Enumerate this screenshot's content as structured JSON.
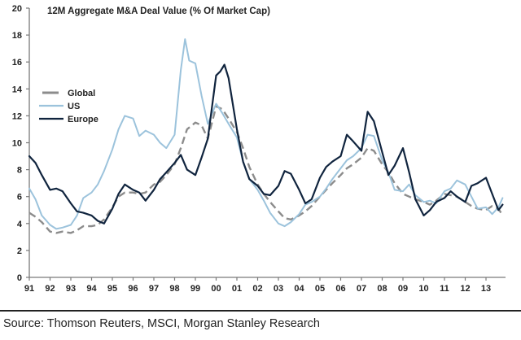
{
  "chart_data": {
    "type": "line",
    "title": "12M Aggregate M&A Deal Value (% Of Market Cap)",
    "xlabel": "",
    "ylabel": "",
    "xlim": [
      1991,
      2013.9
    ],
    "ylim": [
      0,
      20
    ],
    "y_ticks": [
      0,
      2,
      4,
      6,
      8,
      10,
      12,
      14,
      16,
      18,
      20
    ],
    "x_ticks": [
      {
        "year": 1991,
        "label": "91"
      },
      {
        "year": 1992,
        "label": "92"
      },
      {
        "year": 1993,
        "label": "93"
      },
      {
        "year": 1994,
        "label": "94"
      },
      {
        "year": 1995,
        "label": "95"
      },
      {
        "year": 1996,
        "label": "96"
      },
      {
        "year": 1997,
        "label": "97"
      },
      {
        "year": 1998,
        "label": "98"
      },
      {
        "year": 1999,
        "label": "99"
      },
      {
        "year": 2000,
        "label": "00"
      },
      {
        "year": 2001,
        "label": "01"
      },
      {
        "year": 2002,
        "label": "02"
      },
      {
        "year": 2003,
        "label": "03"
      },
      {
        "year": 2004,
        "label": "04"
      },
      {
        "year": 2005,
        "label": "05"
      },
      {
        "year": 2006,
        "label": "06"
      },
      {
        "year": 2007,
        "label": "07"
      },
      {
        "year": 2008,
        "label": "08"
      },
      {
        "year": 2009,
        "label": "09"
      },
      {
        "year": 2010,
        "label": "10"
      },
      {
        "year": 2011,
        "label": "11"
      },
      {
        "year": 2012,
        "label": "12"
      },
      {
        "year": 2013,
        "label": "13"
      }
    ],
    "grid": false,
    "legend_position": "top-left",
    "series": [
      {
        "name": "Global",
        "color": "#8c8c8c",
        "style": "dashed",
        "x": [
          1991.0,
          1991.3,
          1991.6,
          1992.0,
          1992.3,
          1992.6,
          1993.0,
          1993.3,
          1993.6,
          1994.0,
          1994.3,
          1994.6,
          1995.0,
          1995.3,
          1995.6,
          1996.0,
          1996.3,
          1996.6,
          1997.0,
          1997.3,
          1997.6,
          1998.0,
          1998.3,
          1998.6,
          1999.0,
          1999.3,
          1999.6,
          2000.0,
          2000.3,
          2000.6,
          2001.0,
          2001.3,
          2001.6,
          2002.0,
          2002.3,
          2002.6,
          2003.0,
          2003.3,
          2003.6,
          2004.0,
          2004.3,
          2004.6,
          2005.0,
          2005.3,
          2005.6,
          2006.0,
          2006.3,
          2006.6,
          2007.0,
          2007.3,
          2007.6,
          2008.0,
          2008.3,
          2008.6,
          2009.0,
          2009.3,
          2009.6,
          2010.0,
          2010.3,
          2010.6,
          2011.0,
          2011.3,
          2011.6,
          2012.0,
          2012.3,
          2012.6,
          2013.0,
          2013.3,
          2013.6,
          2013.8
        ],
        "values": [
          4.8,
          4.5,
          4.1,
          3.4,
          3.3,
          3.4,
          3.3,
          3.5,
          3.8,
          3.8,
          3.9,
          4.3,
          5.2,
          6.0,
          6.3,
          6.3,
          6.2,
          6.3,
          6.9,
          7.1,
          7.6,
          8.4,
          9.6,
          11.0,
          11.5,
          11.3,
          10.3,
          12.7,
          12.5,
          11.8,
          10.8,
          9.6,
          8.2,
          6.9,
          6.2,
          5.6,
          4.9,
          4.4,
          4.3,
          4.6,
          4.9,
          5.3,
          6.0,
          6.5,
          7.0,
          7.6,
          8.1,
          8.4,
          8.9,
          9.6,
          9.4,
          8.4,
          7.8,
          7.0,
          6.2,
          6.0,
          5.8,
          5.6,
          5.4,
          5.7,
          6.2,
          6.1,
          6.0,
          5.6,
          5.3,
          5.1,
          5.0,
          5.3,
          5.1,
          4.6
        ]
      },
      {
        "name": "US",
        "color": "#9cc3dc",
        "style": "solid",
        "x": [
          1991.0,
          1991.3,
          1991.6,
          1992.0,
          1992.3,
          1992.6,
          1993.0,
          1993.3,
          1993.6,
          1994.0,
          1994.3,
          1994.6,
          1995.0,
          1995.3,
          1995.6,
          1996.0,
          1996.3,
          1996.6,
          1997.0,
          1997.3,
          1997.6,
          1998.0,
          1998.3,
          1998.5,
          1998.7,
          1999.0,
          1999.3,
          1999.6,
          2000.0,
          2000.3,
          2000.6,
          2001.0,
          2001.3,
          2001.6,
          2002.0,
          2002.3,
          2002.6,
          2003.0,
          2003.3,
          2003.6,
          2004.0,
          2004.3,
          2004.6,
          2005.0,
          2005.3,
          2005.6,
          2006.0,
          2006.3,
          2006.6,
          2007.0,
          2007.3,
          2007.6,
          2008.0,
          2008.3,
          2008.6,
          2009.0,
          2009.3,
          2009.6,
          2010.0,
          2010.3,
          2010.6,
          2011.0,
          2011.3,
          2011.6,
          2012.0,
          2012.3,
          2012.6,
          2013.0,
          2013.3,
          2013.6,
          2013.8
        ],
        "values": [
          6.6,
          5.8,
          4.6,
          3.9,
          3.6,
          3.7,
          3.9,
          4.6,
          5.9,
          6.3,
          6.9,
          7.9,
          9.5,
          11.0,
          12.0,
          11.8,
          10.5,
          10.9,
          10.6,
          10.0,
          9.6,
          10.6,
          15.4,
          17.7,
          16.1,
          15.9,
          13.5,
          11.4,
          12.9,
          12.2,
          11.4,
          10.4,
          8.6,
          7.3,
          6.5,
          5.7,
          4.8,
          4.0,
          3.8,
          4.1,
          4.7,
          5.4,
          5.6,
          6.0,
          6.6,
          7.3,
          8.1,
          8.7,
          9.0,
          9.6,
          10.6,
          10.5,
          8.7,
          7.8,
          6.5,
          6.4,
          6.9,
          6.1,
          5.6,
          5.7,
          5.5,
          6.4,
          6.6,
          7.2,
          6.9,
          6.0,
          5.1,
          5.2,
          4.7,
          5.2,
          5.9
        ]
      },
      {
        "name": "Europe",
        "color": "#10243e",
        "style": "solid",
        "x": [
          1991.0,
          1991.3,
          1991.6,
          1992.0,
          1992.3,
          1992.6,
          1993.0,
          1993.3,
          1993.6,
          1994.0,
          1994.3,
          1994.6,
          1995.0,
          1995.3,
          1995.6,
          1996.0,
          1996.3,
          1996.6,
          1997.0,
          1997.3,
          1997.6,
          1998.0,
          1998.3,
          1998.6,
          1999.0,
          1999.3,
          1999.6,
          2000.0,
          2000.2,
          2000.4,
          2000.6,
          2001.0,
          2001.3,
          2001.6,
          2002.0,
          2002.3,
          2002.6,
          2003.0,
          2003.3,
          2003.6,
          2004.0,
          2004.3,
          2004.6,
          2005.0,
          2005.3,
          2005.6,
          2006.0,
          2006.3,
          2006.6,
          2007.0,
          2007.3,
          2007.6,
          2008.0,
          2008.3,
          2008.6,
          2009.0,
          2009.3,
          2009.6,
          2010.0,
          2010.3,
          2010.6,
          2011.0,
          2011.3,
          2011.6,
          2012.0,
          2012.3,
          2012.6,
          2013.0,
          2013.3,
          2013.6,
          2013.8
        ],
        "values": [
          9.0,
          8.5,
          7.6,
          6.5,
          6.6,
          6.4,
          5.5,
          4.9,
          4.8,
          4.6,
          4.2,
          4.0,
          5.1,
          6.2,
          6.9,
          6.5,
          6.3,
          5.7,
          6.5,
          7.3,
          7.8,
          8.5,
          9.1,
          8.0,
          7.6,
          8.9,
          10.3,
          15.0,
          15.3,
          15.8,
          14.8,
          11.0,
          8.6,
          7.3,
          6.8,
          6.2,
          6.1,
          6.8,
          7.9,
          7.7,
          6.5,
          5.5,
          5.8,
          7.4,
          8.2,
          8.6,
          9.0,
          10.6,
          10.1,
          9.4,
          12.3,
          11.6,
          9.3,
          7.6,
          8.3,
          9.6,
          7.8,
          5.8,
          4.6,
          5.0,
          5.6,
          5.9,
          6.4,
          6.0,
          5.6,
          6.8,
          7.0,
          7.4,
          6.2,
          5.0,
          5.4
        ]
      }
    ]
  },
  "source": "Source: Thomson Reuters, MSCI, Morgan Stanley Research"
}
